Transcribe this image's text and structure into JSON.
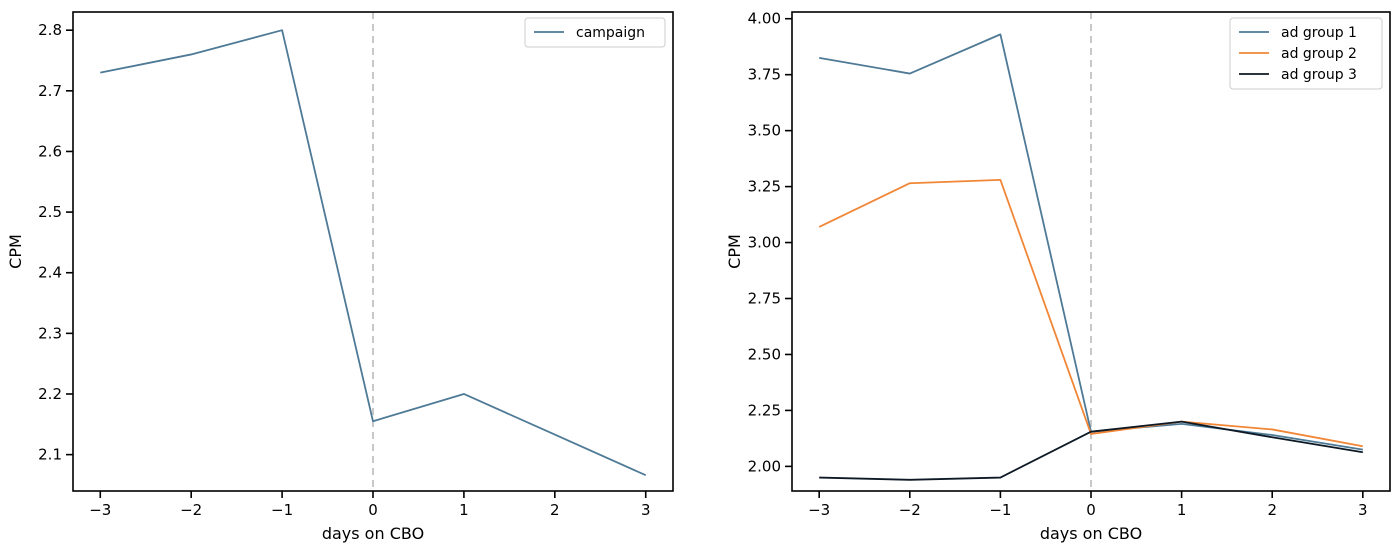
{
  "chart_data": [
    {
      "type": "line",
      "xlabel": "days on CBO",
      "ylabel": "CPM",
      "xlim": [
        -3.3,
        3.3
      ],
      "ylim": [
        2.04,
        2.83
      ],
      "xticks": [
        -3,
        -2,
        -1,
        0,
        1,
        2,
        3
      ],
      "xtick_labels": [
        "−3",
        "−2",
        "−1",
        "0",
        "1",
        "2",
        "3"
      ],
      "yticks": [
        2.1,
        2.2,
        2.3,
        2.4,
        2.5,
        2.6,
        2.7,
        2.8
      ],
      "ytick_labels": [
        "2.1",
        "2.2",
        "2.3",
        "2.4",
        "2.5",
        "2.6",
        "2.7",
        "2.8"
      ],
      "vline": 0,
      "grid": false,
      "legend_position": "top-right",
      "x": [
        -3,
        -2,
        -1,
        0,
        1,
        2,
        3
      ],
      "series": [
        {
          "name": "campaign",
          "color": "#4e7a96",
          "values": [
            2.73,
            2.76,
            2.8,
            2.155,
            2.2,
            2.133,
            2.066
          ]
        }
      ]
    },
    {
      "type": "line",
      "xlabel": "days on CBO",
      "ylabel": "CPM",
      "xlim": [
        -3.3,
        3.3
      ],
      "ylim": [
        1.89,
        4.03
      ],
      "xticks": [
        -3,
        -2,
        -1,
        0,
        1,
        2,
        3
      ],
      "xtick_labels": [
        "−3",
        "−2",
        "−1",
        "0",
        "1",
        "2",
        "3"
      ],
      "yticks": [
        2.0,
        2.25,
        2.5,
        2.75,
        3.0,
        3.25,
        3.5,
        3.75,
        4.0
      ],
      "ytick_labels": [
        "2.00",
        "2.25",
        "2.50",
        "2.75",
        "3.00",
        "3.25",
        "3.50",
        "3.75",
        "4.00"
      ],
      "vline": 0,
      "grid": false,
      "legend_position": "top-right",
      "x": [
        -3,
        -2,
        -1,
        0,
        1,
        2,
        3
      ],
      "series": [
        {
          "name": "ad group 1",
          "color": "#4e7a96",
          "values": [
            3.825,
            3.755,
            3.93,
            2.155,
            2.19,
            2.14,
            2.075
          ]
        },
        {
          "name": "ad group 2",
          "color": "#f08636",
          "values": [
            3.07,
            3.265,
            3.28,
            2.145,
            2.2,
            2.165,
            2.09
          ]
        },
        {
          "name": "ad group 3",
          "color": "#0d1a26",
          "values": [
            1.95,
            1.94,
            1.95,
            2.155,
            2.2,
            2.13,
            2.063
          ]
        }
      ]
    }
  ]
}
